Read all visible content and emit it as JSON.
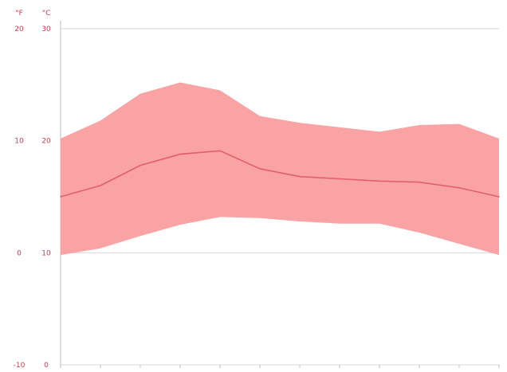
{
  "chart_data": {
    "type": "area",
    "title": "",
    "xlabel": "",
    "ylabel": "",
    "x": [
      1,
      2,
      3,
      4,
      5,
      6,
      7,
      8,
      9,
      10,
      11,
      12
    ],
    "x_tick_labels": [
      "",
      "",
      "",
      "",
      "",
      "",
      "",
      "",
      "",
      "",
      "",
      ""
    ],
    "series": [
      {
        "kind": "band",
        "upper": [
          10.2,
          11.8,
          14.2,
          15.2,
          14.5,
          12.2,
          11.6,
          11.2,
          10.8,
          11.4,
          11.5,
          10.2
        ],
        "lower": [
          -0.2,
          0.4,
          1.5,
          2.5,
          3.2,
          3.1,
          2.8,
          2.6,
          2.6,
          1.8,
          0.8,
          -0.2
        ],
        "color": "#f9a3a4"
      },
      {
        "kind": "line",
        "values": [
          5.0,
          6.0,
          7.8,
          8.8,
          9.1,
          7.5,
          6.8,
          6.6,
          6.4,
          6.3,
          5.8,
          5.0
        ],
        "color": "#e0606a"
      }
    ],
    "y_right_tick_labels_left": [
      "−",
      "",
      "",
      ""
    ],
    "y_axis_left_outer": [
      "20",
      "10",
      "0",
      "-10"
    ],
    "y_axis_left_inner": [
      "30",
      "20",
      "10",
      "0"
    ],
    "y_axis_title_left_outer": "°F",
    "y_axis_title_left_inner": "°C",
    "ylim": [
      -10,
      20
    ],
    "grid_y": true,
    "colors": {
      "band": "#f9a3a4",
      "line": "#e0606a",
      "axis_text": "#d4384e",
      "grid": "#d8d8d8",
      "axis": "#bdbdbd"
    }
  }
}
